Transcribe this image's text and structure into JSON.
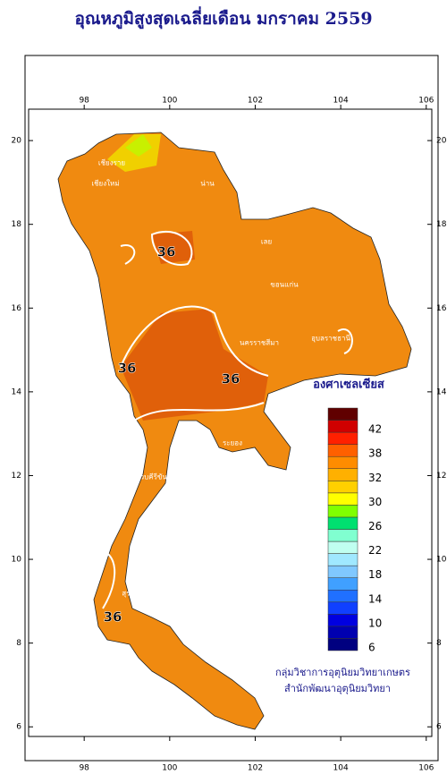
{
  "title": "อุณหภูมิสูงสุดเฉลี่ยเดือน มกราคม 2559",
  "map": {
    "xlim": [
      96.7,
      106.13
    ],
    "ylim": [
      5.77,
      20.75
    ],
    "xticks": [
      98,
      100,
      102,
      104,
      106
    ],
    "yticks": [
      6,
      8,
      10,
      12,
      14,
      16,
      18,
      20
    ],
    "contour_labels": [
      "36",
      "36",
      "36",
      "36"
    ],
    "place_names": [
      "เชียงใหม่",
      "เชียงราย",
      "น่าน",
      "เลย",
      "นครราชสีมา",
      "ประจวบคีรีขันธ์",
      "สุราษฎร์ธานี",
      "ระยอง",
      "ขอนแก่น",
      "อุบลราชธานี"
    ]
  },
  "legend": {
    "title": "องศาเซลเซียส",
    "colors": [
      "#000080",
      "#0000b0",
      "#0000e0",
      "#1040ff",
      "#2070ff",
      "#40a0ff",
      "#80c8ff",
      "#a0e8ff",
      "#c0fff0",
      "#80ffd0",
      "#00e070",
      "#80ff00",
      "#ffff00",
      "#ffd000",
      "#ffb000",
      "#ff8c00",
      "#ff6000",
      "#ff2000",
      "#d00000",
      "#600000"
    ],
    "labels": [
      6,
      10,
      14,
      18,
      22,
      26,
      30,
      32,
      38,
      42
    ]
  },
  "footer": [
    "กลุ่มวิชาการอุตุนิยมวิทยาเกษตร",
    "สำนักพัฒนาอุตุนิยมวิทยา"
  ]
}
